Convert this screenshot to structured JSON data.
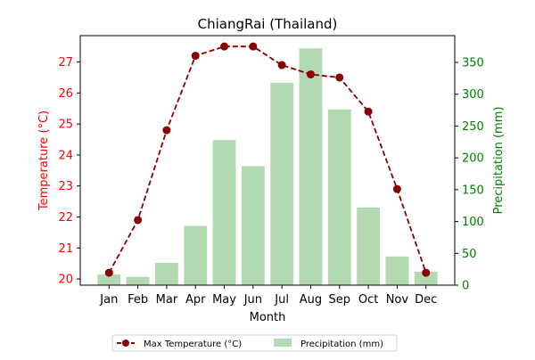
{
  "chart_data": {
    "type": "bar+line",
    "title": "ChiangRai (Thailand)",
    "xlabel": "Month",
    "categories": [
      "Jan",
      "Feb",
      "Mar",
      "Apr",
      "May",
      "Jun",
      "Jul",
      "Aug",
      "Sep",
      "Oct",
      "Nov",
      "Dec"
    ],
    "left_axis": {
      "label": "Temperature (°C)",
      "color": "#ff0000",
      "ylim": [
        19.8,
        27.85
      ],
      "ticks": [
        20,
        21,
        22,
        23,
        24,
        25,
        26,
        27
      ]
    },
    "right_axis": {
      "label": "Precipitation (mm)",
      "color": "#008000",
      "ylim": [
        0,
        392
      ],
      "ticks": [
        0,
        50,
        100,
        150,
        200,
        250,
        300,
        350
      ]
    },
    "series": [
      {
        "name": "Max Temperature (°C)",
        "type": "line",
        "axis": "left",
        "color": "#8b0000",
        "line_style": "dashed",
        "marker": "circle",
        "values": [
          20.2,
          21.9,
          24.8,
          27.2,
          27.5,
          27.5,
          26.9,
          26.6,
          26.5,
          25.4,
          22.9,
          20.2
        ]
      },
      {
        "name": "Precipitation (mm)",
        "type": "bar",
        "axis": "right",
        "color": "#b2d9b2",
        "values": [
          17,
          13,
          35,
          93,
          228,
          187,
          318,
          372,
          276,
          122,
          45,
          21
        ]
      }
    ],
    "legend": {
      "position": "bottom-center",
      "entries": [
        "Max Temperature (°C)",
        "Precipitation (mm)"
      ]
    },
    "grid": false
  }
}
